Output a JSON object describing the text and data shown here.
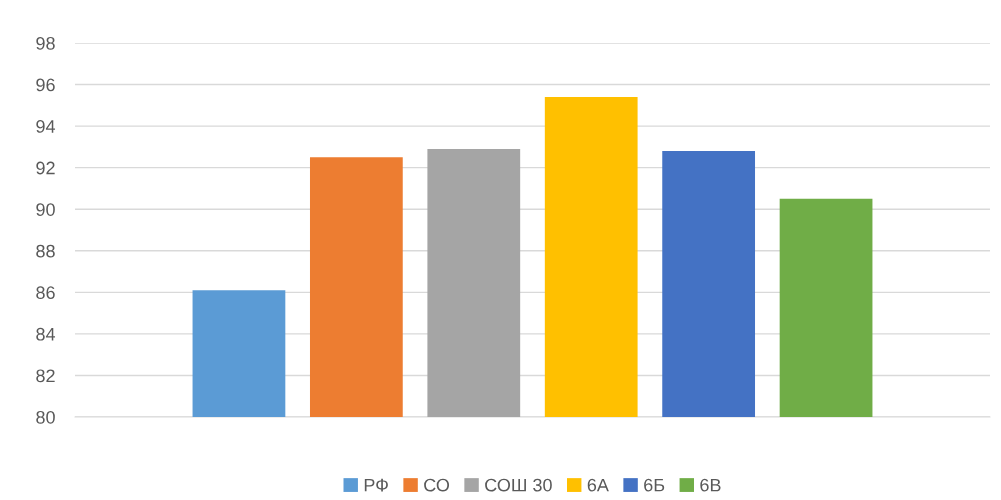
{
  "chart_data": {
    "type": "bar",
    "categories": [
      null
    ],
    "series": [
      {
        "name": "РФ",
        "color": "#5b9bd5",
        "values": [
          86.1
        ]
      },
      {
        "name": "СО",
        "color": "#ed7d31",
        "values": [
          92.5
        ]
      },
      {
        "name": "СОШ 30",
        "color": "#a5a5a5",
        "values": [
          92.9
        ]
      },
      {
        "name": "6А",
        "color": "#ffc000",
        "values": [
          95.4
        ]
      },
      {
        "name": "6Б",
        "color": "#4472c4",
        "values": [
          92.8
        ]
      },
      {
        "name": "6В",
        "color": "#70ad47",
        "values": [
          90.5
        ]
      }
    ],
    "ylim": [
      80,
      98
    ],
    "yticks": [
      80,
      82,
      84,
      86,
      88,
      90,
      92,
      94,
      96,
      98
    ],
    "grid": "y",
    "legend": "bottom"
  }
}
